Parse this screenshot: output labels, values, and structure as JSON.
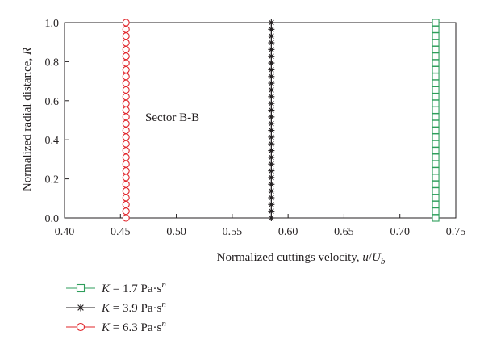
{
  "chart_data": {
    "type": "line",
    "annotation": "Sector B-B",
    "xlabel": {
      "main": "Normalized cuttings velocity, ",
      "var": "u",
      "slash": "/",
      "var2": "U",
      "sub": "b"
    },
    "ylabel": {
      "main": "Normalized radial distance, ",
      "var": "R"
    },
    "xlim": [
      0.4,
      0.75
    ],
    "ylim": [
      0.0,
      1.0
    ],
    "xticks": [
      "0.40",
      "0.45",
      "0.50",
      "0.55",
      "0.60",
      "0.65",
      "0.70",
      "0.75"
    ],
    "yticks": [
      "0.0",
      "0.2",
      "0.4",
      "0.6",
      "0.8",
      "1.0"
    ],
    "x_tick_values": [
      0.4,
      0.45,
      0.5,
      0.55,
      0.6,
      0.65,
      0.7,
      0.75
    ],
    "y_tick_values": [
      0.0,
      0.2,
      0.4,
      0.6,
      0.8,
      1.0
    ],
    "grid": false,
    "legend_position": "bottom-left, below plot",
    "series": [
      {
        "name": "K = 1.7 Pa·s^n",
        "legend": {
          "var": "K",
          "eq": " = 1.7 Pa·s",
          "sup": "n"
        },
        "marker": "square",
        "color": "#2e9e5b",
        "x": [
          0.732,
          0.732,
          0.732,
          0.732,
          0.732,
          0.732,
          0.732,
          0.732,
          0.732,
          0.732,
          0.732,
          0.732,
          0.732,
          0.732,
          0.732,
          0.732,
          0.732,
          0.732,
          0.732,
          0.732,
          0.732,
          0.732,
          0.732,
          0.732,
          0.732,
          0.732,
          0.732,
          0.732,
          0.732,
          0.732
        ],
        "y": [
          0.0,
          0.0345,
          0.069,
          0.1034,
          0.1379,
          0.1724,
          0.2069,
          0.2414,
          0.2759,
          0.3103,
          0.3448,
          0.3793,
          0.4138,
          0.4483,
          0.4828,
          0.5172,
          0.5517,
          0.5862,
          0.6207,
          0.6552,
          0.6897,
          0.7241,
          0.7586,
          0.7931,
          0.8276,
          0.8621,
          0.8966,
          0.931,
          0.9655,
          1.0
        ]
      },
      {
        "name": "K = 3.9 Pa·s^n",
        "legend": {
          "var": "K",
          "eq": " = 3.9 Pa·s",
          "sup": "n"
        },
        "marker": "asterisk",
        "color": "#231f20",
        "x": [
          0.585,
          0.585,
          0.585,
          0.585,
          0.585,
          0.585,
          0.585,
          0.585,
          0.585,
          0.585,
          0.585,
          0.585,
          0.585,
          0.585,
          0.585,
          0.585,
          0.585,
          0.585,
          0.585,
          0.585,
          0.585,
          0.585,
          0.585,
          0.585,
          0.585,
          0.585,
          0.585,
          0.585,
          0.585,
          0.585
        ],
        "y": [
          0.0,
          0.0345,
          0.069,
          0.1034,
          0.1379,
          0.1724,
          0.2069,
          0.2414,
          0.2759,
          0.3103,
          0.3448,
          0.3793,
          0.4138,
          0.4483,
          0.4828,
          0.5172,
          0.5517,
          0.5862,
          0.6207,
          0.6552,
          0.6897,
          0.7241,
          0.7586,
          0.7931,
          0.8276,
          0.8621,
          0.8966,
          0.931,
          0.9655,
          1.0
        ]
      },
      {
        "name": "K = 6.3 Pa·s^n",
        "legend": {
          "var": "K",
          "eq": " = 6.3 Pa·s",
          "sup": "n"
        },
        "marker": "circle",
        "color": "#e0242a",
        "x": [
          0.455,
          0.455,
          0.455,
          0.455,
          0.455,
          0.455,
          0.455,
          0.455,
          0.455,
          0.455,
          0.455,
          0.455,
          0.455,
          0.455,
          0.455,
          0.455,
          0.455,
          0.455,
          0.455,
          0.455,
          0.455,
          0.455,
          0.455,
          0.455,
          0.455,
          0.455,
          0.455,
          0.455,
          0.455,
          0.455
        ],
        "y": [
          0.0,
          0.0345,
          0.069,
          0.1034,
          0.1379,
          0.1724,
          0.2069,
          0.2414,
          0.2759,
          0.3103,
          0.3448,
          0.3793,
          0.4138,
          0.4483,
          0.4828,
          0.5172,
          0.5517,
          0.5862,
          0.6207,
          0.6552,
          0.6897,
          0.7241,
          0.7586,
          0.7931,
          0.8276,
          0.8621,
          0.8966,
          0.931,
          0.9655,
          1.0
        ]
      }
    ]
  }
}
